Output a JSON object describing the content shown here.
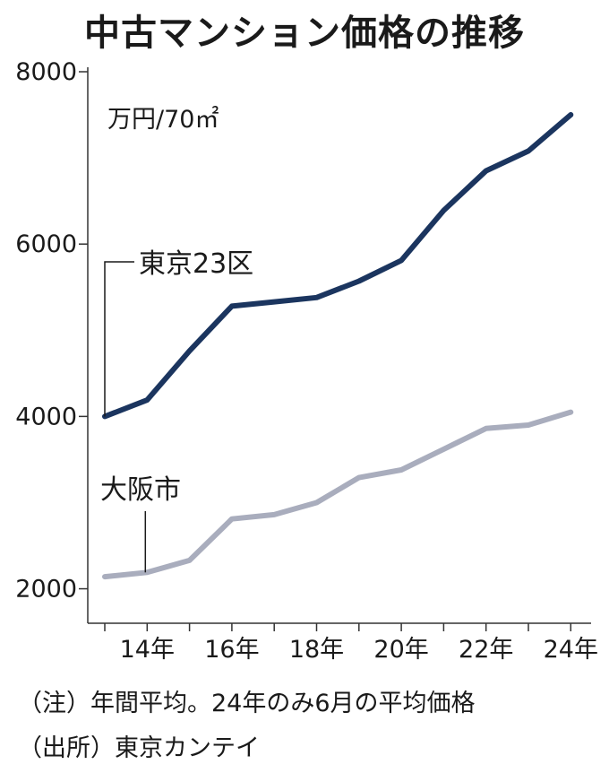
{
  "title": "中古マンション価格の推移",
  "chart_data": {
    "type": "line",
    "title": "中古マンション価格の推移",
    "unit": "万円/70㎡",
    "x": [
      13,
      14,
      15,
      16,
      17,
      18,
      19,
      20,
      21,
      22,
      23,
      24
    ],
    "xtick_labels": [
      "14年",
      "16年",
      "18年",
      "20年",
      "22年",
      "24年"
    ],
    "xtick_values": [
      14,
      16,
      18,
      20,
      22,
      24
    ],
    "ytick_values": [
      2000,
      4000,
      6000,
      8000
    ],
    "ytick_labels": [
      "2000",
      "4000",
      "6000",
      "8000"
    ],
    "ylim": [
      1600,
      8000
    ],
    "xlim": [
      12.6,
      24.4
    ],
    "grid": false,
    "series": [
      {
        "name": "東京23区",
        "color": "#1b355f",
        "values": [
          4000,
          4190,
          4760,
          5280,
          5330,
          5380,
          5570,
          5810,
          6390,
          6850,
          7080,
          7500
        ]
      },
      {
        "name": "大阪市",
        "color": "#a9adbd",
        "values": [
          2140,
          2190,
          2330,
          2810,
          2860,
          3000,
          3290,
          3380,
          3620,
          3860,
          3900,
          4050
        ]
      }
    ]
  },
  "notes": {
    "note1": "（注）年間平均。24年のみ6月の平均価格",
    "source": "（出所）東京カンテイ"
  }
}
